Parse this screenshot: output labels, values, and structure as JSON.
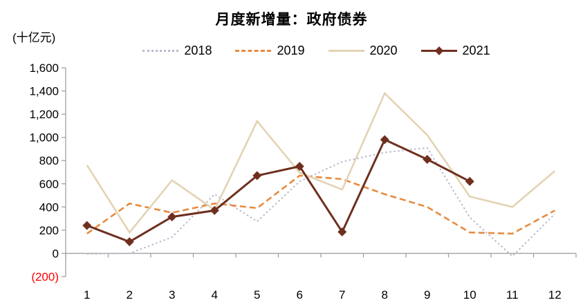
{
  "chart_data": {
    "type": "line",
    "title": "月度新增量：政府债券",
    "unit_label": "(十亿元)",
    "xlabel": "",
    "ylabel": "",
    "categories": [
      "1",
      "2",
      "3",
      "4",
      "5",
      "6",
      "7",
      "8",
      "9",
      "10",
      "11",
      "12"
    ],
    "ylim": [
      -200,
      1600
    ],
    "grid": false,
    "legend_position": "top-center",
    "yticks": [
      {
        "value": 1600,
        "label": "1,600"
      },
      {
        "value": 1400,
        "label": "1,400"
      },
      {
        "value": 1200,
        "label": "1,200"
      },
      {
        "value": 1000,
        "label": "1,000"
      },
      {
        "value": 800,
        "label": "800"
      },
      {
        "value": 600,
        "label": "600"
      },
      {
        "value": 400,
        "label": "400"
      },
      {
        "value": 200,
        "label": "200"
      },
      {
        "value": 0,
        "label": "0"
      },
      {
        "value": -200,
        "label": "(200)",
        "color": "#ff0000"
      }
    ],
    "series": [
      {
        "name": "2018",
        "style": "dotted",
        "color": "#b9b9cd",
        "values": [
          -5,
          0,
          140,
          510,
          275,
          620,
          790,
          870,
          910,
          310,
          -25,
          340
        ]
      },
      {
        "name": "2019",
        "style": "dashed",
        "color": "#e78a3e",
        "values": [
          170,
          430,
          350,
          430,
          390,
          670,
          640,
          510,
          400,
          180,
          170,
          370
        ]
      },
      {
        "name": "2020",
        "style": "solid",
        "color": "#e3d3b3",
        "values": [
          760,
          180,
          630,
          375,
          1140,
          695,
          550,
          1380,
          1020,
          490,
          400,
          710
        ]
      },
      {
        "name": "2021",
        "style": "solid-diamond",
        "color": "#6f2f1f",
        "values": [
          240,
          100,
          315,
          370,
          670,
          750,
          185,
          980,
          810,
          620,
          null,
          null
        ]
      }
    ],
    "axis_color": "#a0a0a0",
    "text_color": "#000000"
  }
}
